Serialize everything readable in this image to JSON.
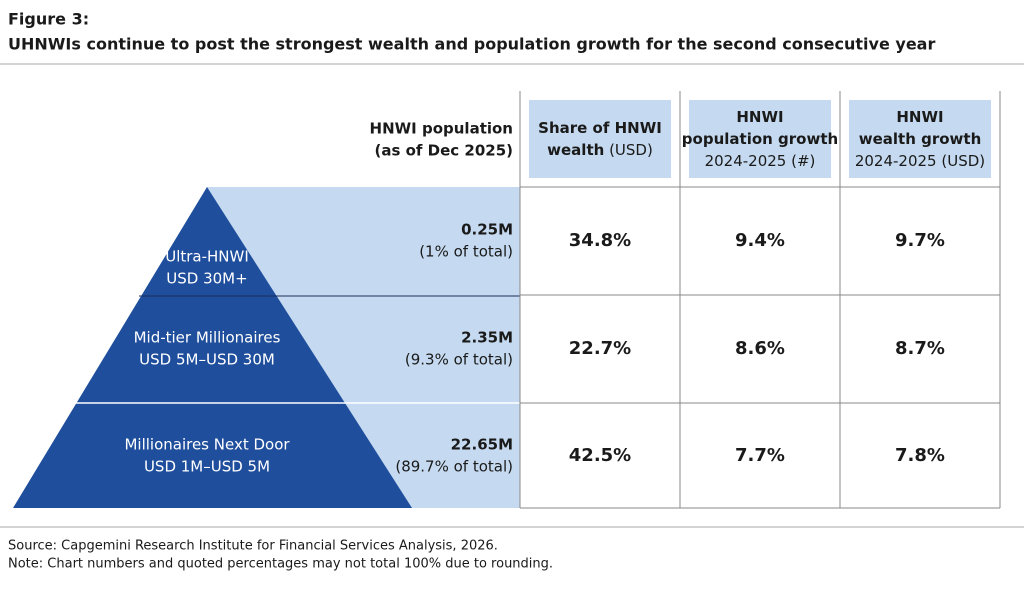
{
  "header": {
    "label": "Figure 3:",
    "title": "UHNWIs continue to post the strongest wealth and population growth for the second consecutive year"
  },
  "population_header": [
    "HNWI population",
    "(as of Dec 2025)"
  ],
  "columns": [
    [
      [
        {
          "text": "Share of HNWI",
          "bold": true
        }
      ],
      [
        {
          "text": "wealth",
          "bold": true
        },
        {
          "text": " (USD)",
          "bold": false
        }
      ]
    ],
    [
      [
        {
          "text": "HNWI",
          "bold": true
        }
      ],
      [
        {
          "text": "population growth",
          "bold": true
        }
      ],
      [
        {
          "text": "2024-2025 (#)",
          "bold": false
        }
      ]
    ],
    [
      [
        {
          "text": "HNWI",
          "bold": true
        }
      ],
      [
        {
          "text": "wealth growth",
          "bold": true
        }
      ],
      [
        {
          "text": "2024-2025 (USD)",
          "bold": false
        }
      ]
    ]
  ],
  "rows": [
    {
      "segment": [
        "Ultra-HNWI",
        "USD 30M+"
      ],
      "population": "0.25M",
      "share_of_total": "(1% of total)",
      "cells": [
        "34.8%",
        "9.4%",
        "9.7%"
      ]
    },
    {
      "segment": [
        "Mid-tier Millionaires",
        "USD 5M–USD 30M"
      ],
      "population": "2.35M",
      "share_of_total": "(9.3% of total)",
      "cells": [
        "22.7%",
        "8.6%",
        "8.7%"
      ]
    },
    {
      "segment": [
        "Millionaires Next Door",
        "USD 1M–USD 5M"
      ],
      "population": "22.65M",
      "share_of_total": "(89.7% of total)",
      "cells": [
        "42.5%",
        "7.7%",
        "7.8%"
      ]
    }
  ],
  "footer": [
    "Source: Capgemini Research Institute for Financial Services Analysis, 2026.",
    "Note: Chart numbers and quoted percentages may not total 100% due to rounding."
  ]
}
